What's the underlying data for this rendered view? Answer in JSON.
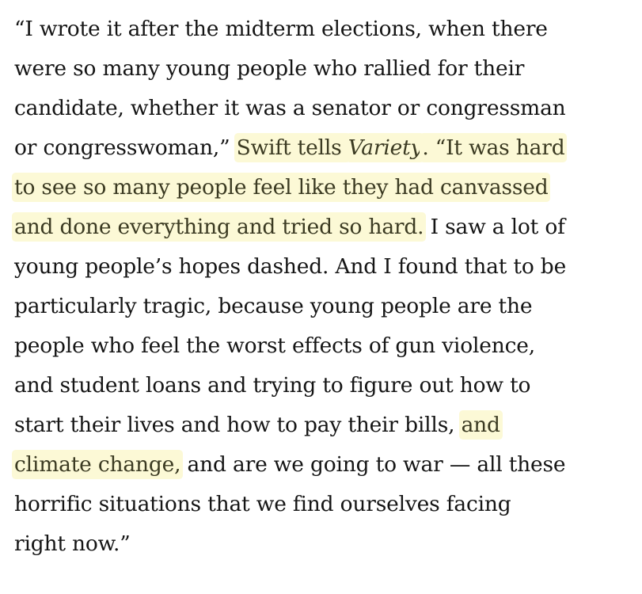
{
  "highlight_color": "#fcf9d6",
  "quote": {
    "lines": [
      [
        {
          "text": "“I wrote it after the midterm elections, when there"
        }
      ],
      [
        {
          "text": "were so many young people who rallied for their"
        }
      ],
      [
        {
          "text": "candidate, whether it was a senator or congressman"
        }
      ],
      [
        {
          "text": "or congresswoman,” "
        },
        {
          "text": "Swift tells ",
          "highlight": true
        },
        {
          "text": "Variety",
          "highlight": true,
          "italic": true
        },
        {
          "text": ". “It was hard",
          "highlight": true
        }
      ],
      [
        {
          "text": "to see so many people feel like they had canvassed",
          "highlight": true
        }
      ],
      [
        {
          "text": "and done everything and tried so hard.",
          "highlight": true
        },
        {
          "text": " I saw a lot of"
        }
      ],
      [
        {
          "text": "young people’s hopes dashed. And I found that to be"
        }
      ],
      [
        {
          "text": "particularly tragic, because young people are the"
        }
      ],
      [
        {
          "text": "people who feel the worst effects of gun violence,"
        }
      ],
      [
        {
          "text": "and student loans and trying to figure out how to"
        }
      ],
      [
        {
          "text": "start their lives and how to pay their bills, "
        },
        {
          "text": "and",
          "highlight": true
        }
      ],
      [
        {
          "text": "climate change,",
          "highlight": true
        },
        {
          "text": " and are we going to war — all these"
        }
      ],
      [
        {
          "text": "horrific situations that we find ourselves facing"
        }
      ],
      [
        {
          "text": "right now.”"
        }
      ]
    ]
  }
}
